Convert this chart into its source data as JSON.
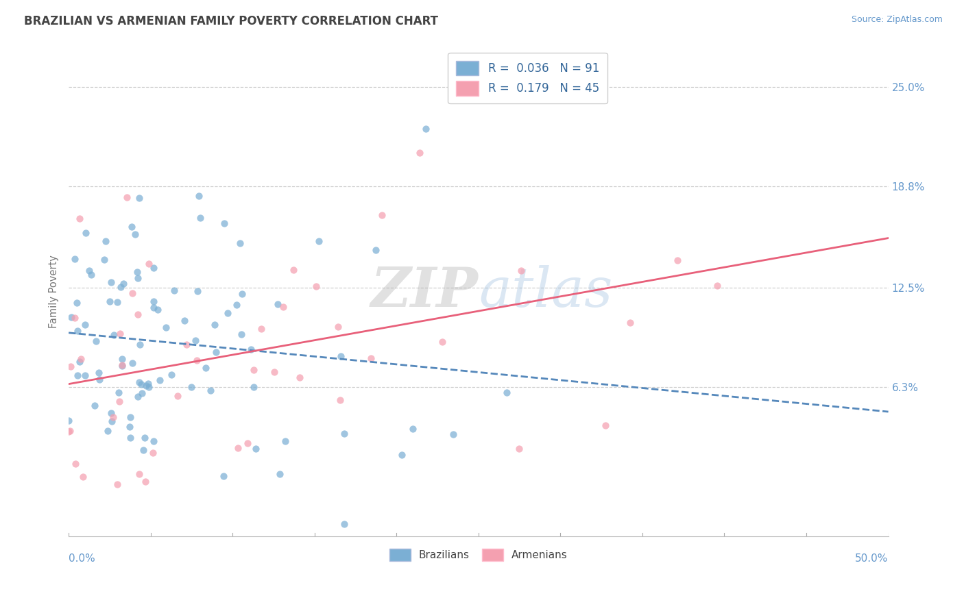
{
  "title": "BRAZILIAN VS ARMENIAN FAMILY POVERTY CORRELATION CHART",
  "source": "Source: ZipAtlas.com",
  "ylabel": "Family Poverty",
  "yticks": [
    0.063,
    0.125,
    0.188,
    0.25
  ],
  "ytick_labels": [
    "6.3%",
    "12.5%",
    "18.8%",
    "25.0%"
  ],
  "xlim": [
    0.0,
    0.5
  ],
  "ylim": [
    -0.03,
    0.275
  ],
  "brazil_R": 0.036,
  "brazil_N": 91,
  "armenia_R": 0.179,
  "armenia_N": 45,
  "brazil_color": "#7BAFD4",
  "armenia_color": "#F4A0B0",
  "brazil_line_color": "#5588BB",
  "armenia_line_color": "#E8607A",
  "background_color": "#FFFFFF",
  "grid_color": "#CCCCCC",
  "title_color": "#444444",
  "tick_color": "#6699CC",
  "legend_brazil_label": "R =  0.036   N = 91",
  "legend_armenia_label": "R =  0.179   N = 45"
}
